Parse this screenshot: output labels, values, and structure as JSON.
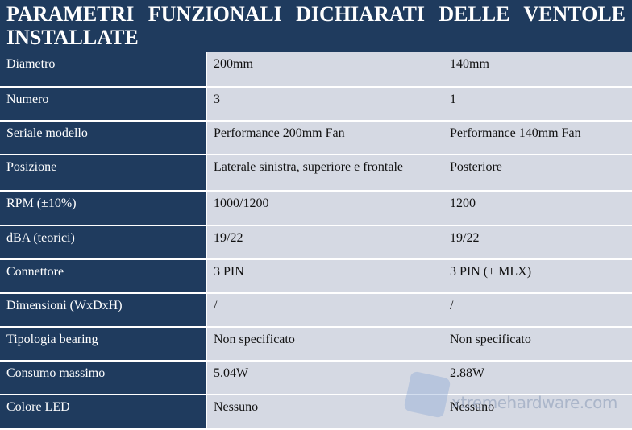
{
  "header": {
    "title": "PARAMETRI FUNZIONALI DICHIARATI DELLE VENTOLE INSTALLATE"
  },
  "table": {
    "rows": [
      [
        "Diametro",
        "200mm",
        "140mm"
      ],
      [
        "Numero",
        "3",
        "1"
      ],
      [
        "Seriale modello",
        "Performance 200mm Fan",
        "Performance 140mm Fan"
      ],
      [
        "Posizione",
        "Laterale sinistra, superiore e frontale",
        "Posteriore"
      ],
      [
        "RPM (±10%)",
        "1000/1200",
        "1200"
      ],
      [
        "dBA (teorici)",
        "19/22",
        "19/22"
      ],
      [
        "Connettore",
        "3 PIN",
        "3 PIN (+ MLX)"
      ],
      [
        "Dimensioni (WxDxH)",
        "/",
        "/"
      ],
      [
        "Tipologia bearing",
        "Non specificato",
        "Non specificato"
      ],
      [
        "Consumo massimo",
        "5.04W",
        "2.88W"
      ],
      [
        "Colore LED",
        "Nessuno",
        "Nessuno"
      ]
    ]
  },
  "watermark": "xtremehardware.com"
}
